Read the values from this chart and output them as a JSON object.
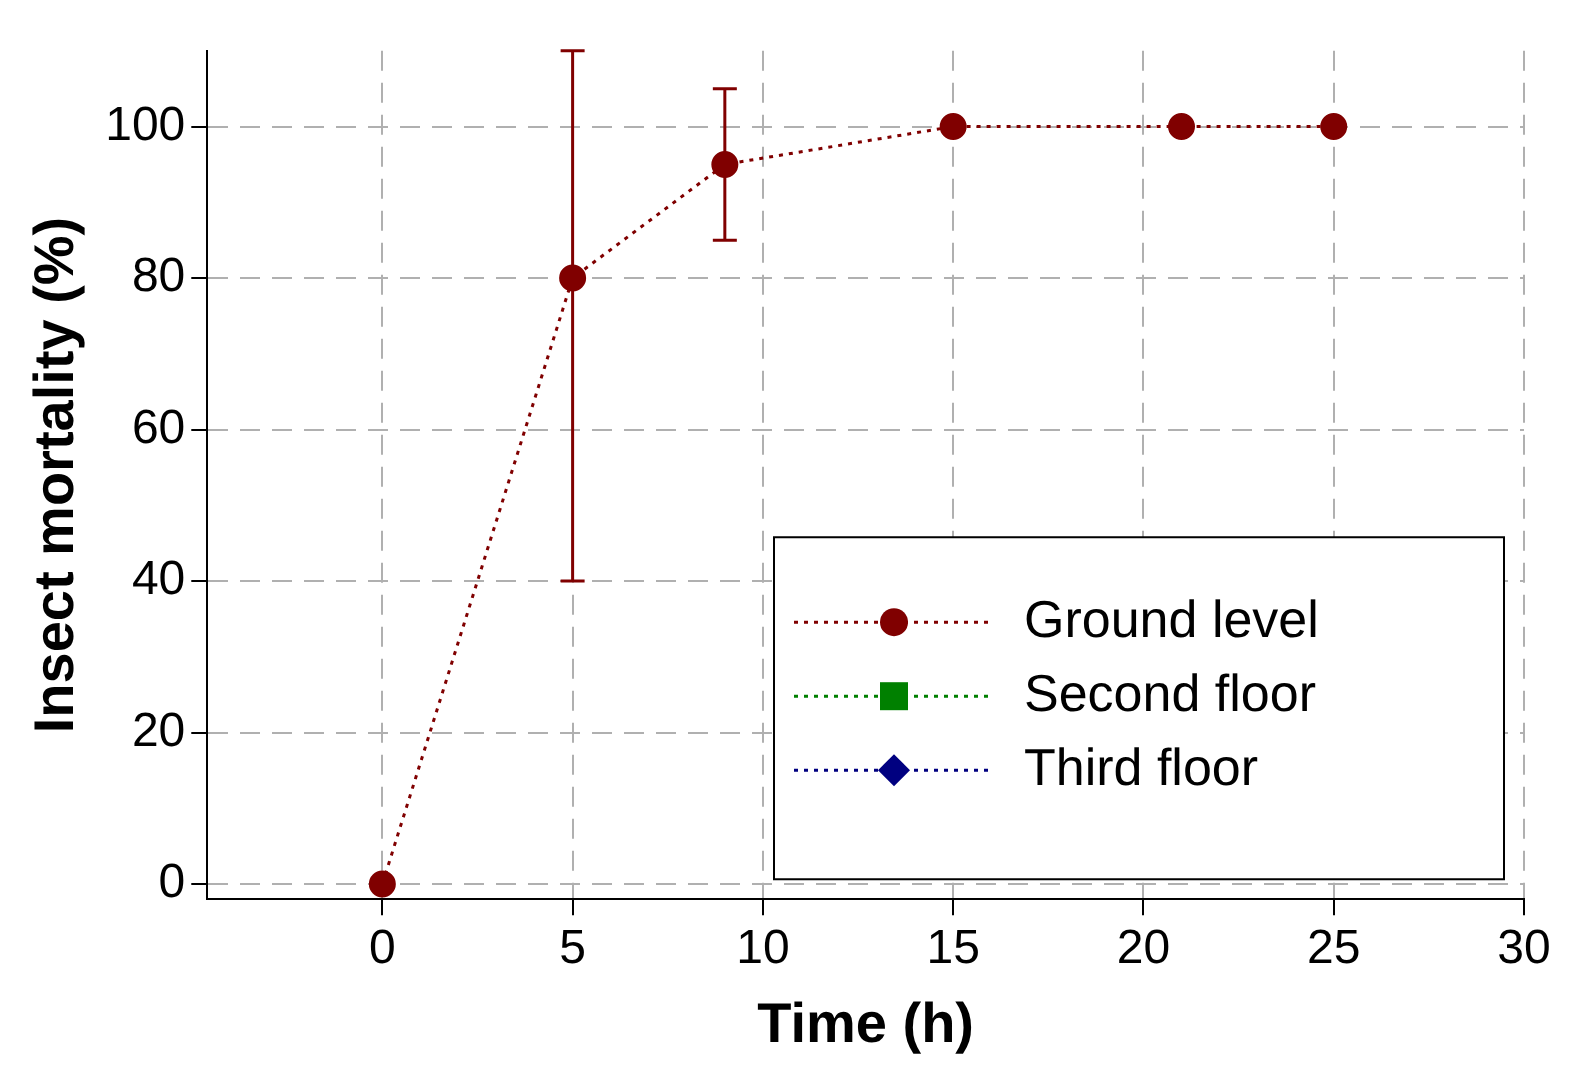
{
  "chart_data": {
    "type": "line",
    "xlabel": "Time (h)",
    "ylabel": "Insect mortality (%)",
    "x": [
      0,
      5,
      9,
      15,
      21,
      25
    ],
    "series": [
      {
        "name": "Ground level",
        "color": "#800000",
        "marker": "circle",
        "line_style": "dotted",
        "values": [
          0,
          80,
          95,
          100,
          100,
          100
        ],
        "errors": [
          null,
          [
            40,
            110
          ],
          [
            85,
            105
          ],
          null,
          null,
          null
        ]
      },
      {
        "name": "Second floor",
        "color": "#008000",
        "marker": "square",
        "line_style": "dotted",
        "values": [
          null,
          null,
          null,
          null,
          null,
          null
        ]
      },
      {
        "name": "Third floor",
        "color": "#000080",
        "marker": "diamond",
        "line_style": "dotted",
        "values": [
          null,
          null,
          null,
          null,
          null,
          null
        ]
      }
    ],
    "xlim": [
      -4.6,
      30
    ],
    "xticks": [
      0,
      5,
      10,
      15,
      20,
      25,
      30
    ],
    "ylim": [
      -2,
      110
    ],
    "yticks": [
      0,
      20,
      40,
      60,
      80,
      100
    ],
    "grid": true,
    "legend": "bottom right"
  }
}
